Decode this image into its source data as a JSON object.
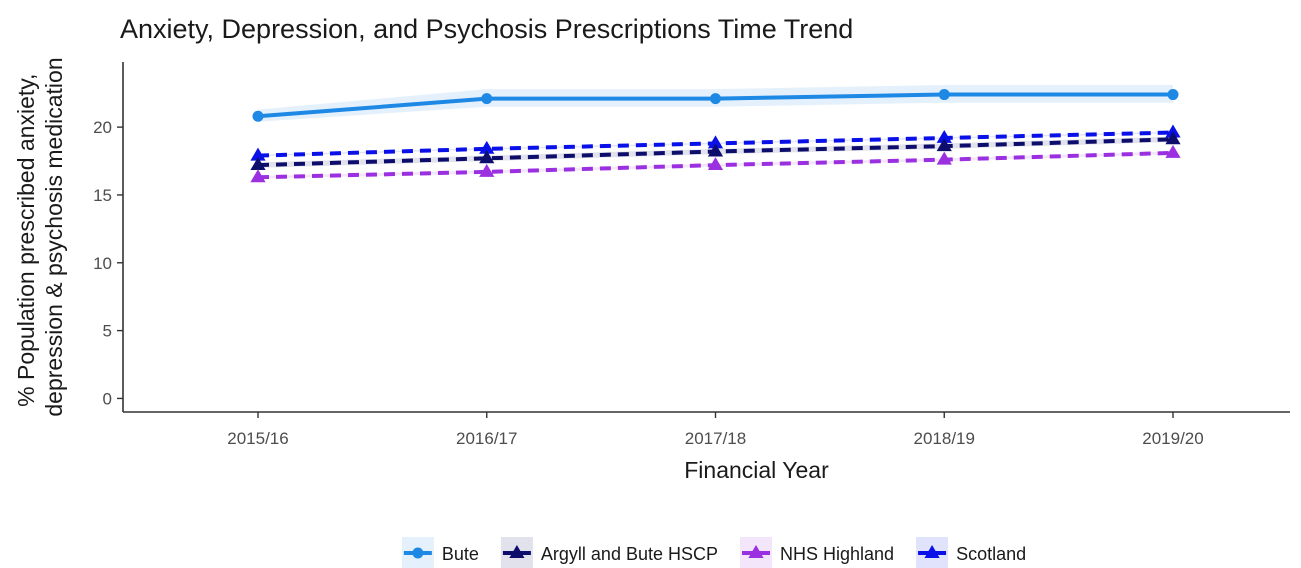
{
  "chart_data": {
    "type": "line",
    "title": "Anxiety, Depression, and Psychosis Prescriptions Time Trend",
    "xlabel": "Financial Year",
    "ylabel_lines": [
      "% Population prescribed anxiety,",
      "depression & psychosis medication"
    ],
    "categories": [
      "2015/16",
      "2016/17",
      "2017/18",
      "2018/19",
      "2019/20"
    ],
    "ylim": [
      -1,
      24.8
    ],
    "yticks": [
      0,
      5,
      10,
      15,
      20
    ],
    "grid": false,
    "legend_position": "bottom",
    "series": [
      {
        "name": "Bute",
        "values": [
          20.8,
          22.1,
          22.1,
          22.4,
          22.4
        ],
        "ci_low": [
          20.4,
          21.5,
          21.5,
          21.8,
          21.8
        ],
        "ci_high": [
          21.3,
          22.8,
          22.8,
          23.1,
          23.1
        ],
        "color": "#1e88e5",
        "dash": "solid",
        "marker": "circle"
      },
      {
        "name": "Argyll and Bute HSCP",
        "values": [
          17.2,
          17.7,
          18.2,
          18.6,
          19.1
        ],
        "ci_low": [
          17.0,
          17.5,
          18.0,
          18.4,
          18.9
        ],
        "ci_high": [
          17.4,
          17.9,
          18.4,
          18.8,
          19.3
        ],
        "color": "#0d0d6b",
        "dash": "dashed",
        "marker": "triangle"
      },
      {
        "name": "NHS Highland",
        "values": [
          16.3,
          16.7,
          17.2,
          17.6,
          18.1
        ],
        "ci_low": [
          16.2,
          16.6,
          17.1,
          17.5,
          18.0
        ],
        "ci_high": [
          16.4,
          16.8,
          17.3,
          17.7,
          18.2
        ],
        "color": "#9b30e0",
        "dash": "dashed",
        "marker": "triangle"
      },
      {
        "name": "Scotland",
        "values": [
          17.9,
          18.4,
          18.8,
          19.2,
          19.6
        ],
        "ci_low": [
          17.85,
          18.35,
          18.75,
          19.15,
          19.55
        ],
        "ci_high": [
          17.95,
          18.45,
          18.85,
          19.25,
          19.65
        ],
        "color": "#0a10e8",
        "dash": "dashed",
        "marker": "triangle"
      }
    ]
  }
}
